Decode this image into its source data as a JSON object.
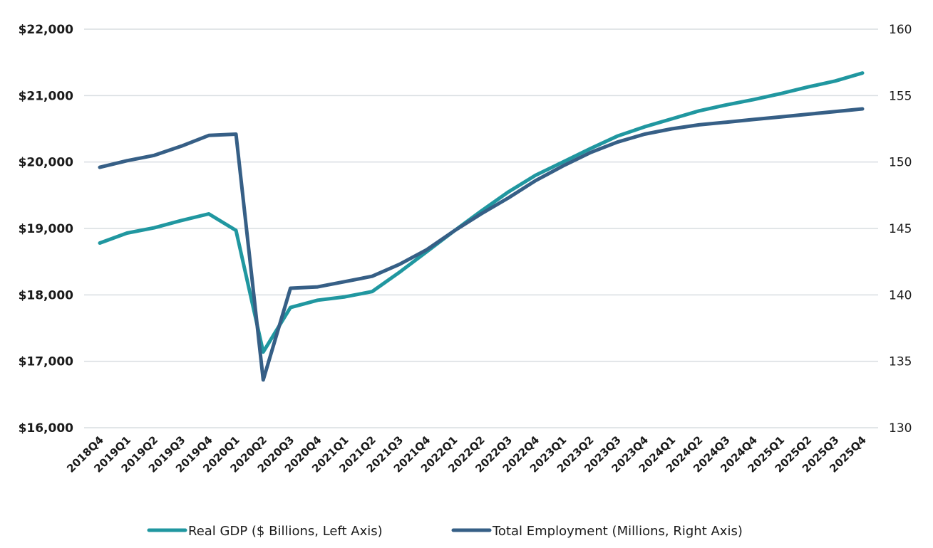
{
  "chart_data": {
    "type": "line",
    "title": "",
    "xlabel": "",
    "ylabel": "",
    "categories": [
      "2018Q4",
      "2019Q1",
      "2019Q2",
      "2019Q3",
      "2019Q4",
      "2020Q1",
      "2020Q2",
      "2020Q3",
      "2020Q4",
      "2021Q1",
      "2021Q2",
      "2021Q3",
      "2021Q4",
      "2022Q1",
      "2022Q2",
      "2022Q3",
      "2022Q4",
      "2023Q1",
      "2023Q2",
      "2023Q3",
      "2023Q4",
      "2024Q1",
      "2024Q2",
      "2024Q3",
      "2024Q4",
      "2025Q1",
      "2025Q2",
      "2025Q3",
      "2025Q4"
    ],
    "y_left": {
      "range": [
        16000,
        22000
      ],
      "ticks": [
        16000,
        17000,
        18000,
        19000,
        20000,
        21000,
        22000
      ],
      "tick_labels": [
        "$16,000",
        "$17,000",
        "$18,000",
        "$19,000",
        "$20,000",
        "$21,000",
        "$22,000"
      ]
    },
    "y_right": {
      "range": [
        130,
        160
      ],
      "ticks": [
        130,
        135,
        140,
        145,
        150,
        155,
        160
      ],
      "tick_labels": [
        "130",
        "135",
        "140",
        "145",
        "150",
        "155",
        "160"
      ]
    },
    "grid": true,
    "legend_position": "bottom",
    "series": [
      {
        "name": "Real GDP ($ Billions, Left Axis)",
        "axis": "left",
        "color": "#2097a0",
        "values": [
          18780,
          18930,
          19010,
          19120,
          19220,
          18970,
          17140,
          17810,
          17920,
          17970,
          18050,
          18340,
          18650,
          18960,
          19260,
          19550,
          19800,
          20000,
          20200,
          20390,
          20530,
          20650,
          20770,
          20860,
          20940,
          21030,
          21130,
          21220,
          21340
        ]
      },
      {
        "name": "Total Employment (Millions, Right Axis)",
        "axis": "right",
        "color": "#365f86",
        "values": [
          149.6,
          150.1,
          150.5,
          151.2,
          152.0,
          152.1,
          133.6,
          140.5,
          140.6,
          141.0,
          141.4,
          142.3,
          143.4,
          144.8,
          146.1,
          147.3,
          148.6,
          149.7,
          150.7,
          151.5,
          152.1,
          152.5,
          152.8,
          153.0,
          153.2,
          153.4,
          153.6,
          153.8,
          154.0
        ]
      }
    ]
  }
}
